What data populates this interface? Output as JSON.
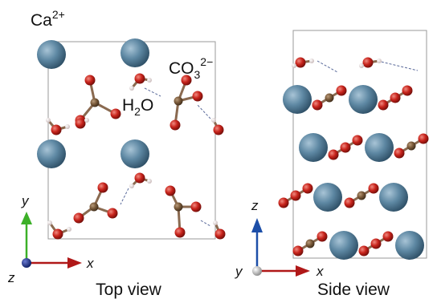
{
  "labels": {
    "calcium": {
      "symbol": "Ca",
      "charge": "2+"
    },
    "carbonate": {
      "symbol": "CO",
      "subscript": "3",
      "charge": "2−"
    },
    "water": {
      "symbol": "H",
      "subscript": "2",
      "rest": "O"
    }
  },
  "top_view": {
    "title": "Top view",
    "axis_y": "y",
    "axis_x": "x",
    "axis_z": "z"
  },
  "side_view": {
    "title": "Side view",
    "axis_z": "z",
    "axis_x": "x",
    "axis_y": "y"
  }
}
